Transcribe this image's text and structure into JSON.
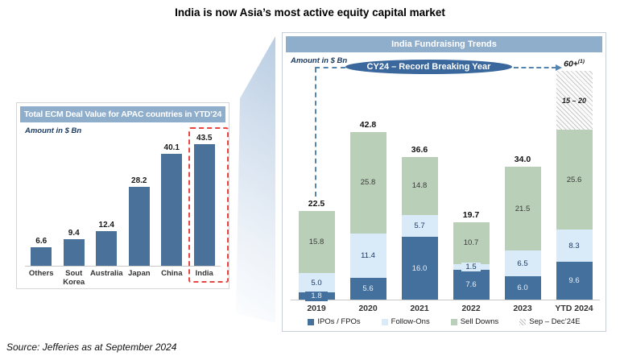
{
  "page": {
    "title": "India is now Asia’s most active equity capital market",
    "source": "Source: Jefferies as at September 2024"
  },
  "chart_data": [
    {
      "type": "bar",
      "panel_title": "Total ECM Deal Value for APAC countries in YTD’24",
      "units_note": "Amount in $ Bn",
      "categories": [
        "Others",
        "Sout\nKorea",
        "Australia",
        "Japan",
        "China",
        "India"
      ],
      "values": [
        6.6,
        9.4,
        12.4,
        28.2,
        40.1,
        43.5
      ],
      "bar_color": "#4A7199",
      "highlight_category": "India",
      "highlight_style": "red-dashed-box",
      "ylim": [
        0,
        47
      ],
      "grid": false,
      "legend_position": "none"
    },
    {
      "type": "stacked-bar",
      "panel_title": "India Fundraising Trends",
      "units_note": "Amount in $ Bn",
      "categories": [
        "2019",
        "2020",
        "2021",
        "2022",
        "2023",
        "YTD 2024"
      ],
      "series": [
        {
          "name": "IPOs / FPOs",
          "color": "#44709D",
          "values": [
            1.8,
            5.6,
            16.0,
            7.6,
            6.0,
            9.6
          ]
        },
        {
          "name": "Follow-Ons",
          "color": "#D9EAF8",
          "values": [
            5.0,
            11.4,
            5.7,
            1.5,
            6.5,
            8.3
          ]
        },
        {
          "name": "Sell Downs",
          "color": "#B9CFB8",
          "values": [
            15.8,
            25.8,
            14.8,
            10.7,
            21.5,
            25.6
          ]
        },
        {
          "name": "Sep – Dec’24E",
          "color": "hatch",
          "values": [
            0,
            0,
            0,
            0,
            0,
            15
          ],
          "display_label": "15 – 20",
          "estimate": true
        }
      ],
      "totals": [
        "22.5",
        "42.8",
        "36.6",
        "19.7",
        "34.0",
        "60+"
      ],
      "total_footnotes": [
        "",
        "",
        "",
        "",
        "",
        "(1)"
      ],
      "annotation": {
        "bubble_text": "CY24 – Record Breaking Year"
      },
      "ylim": [
        0,
        62
      ],
      "grid": false,
      "legend_position": "bottom"
    }
  ]
}
